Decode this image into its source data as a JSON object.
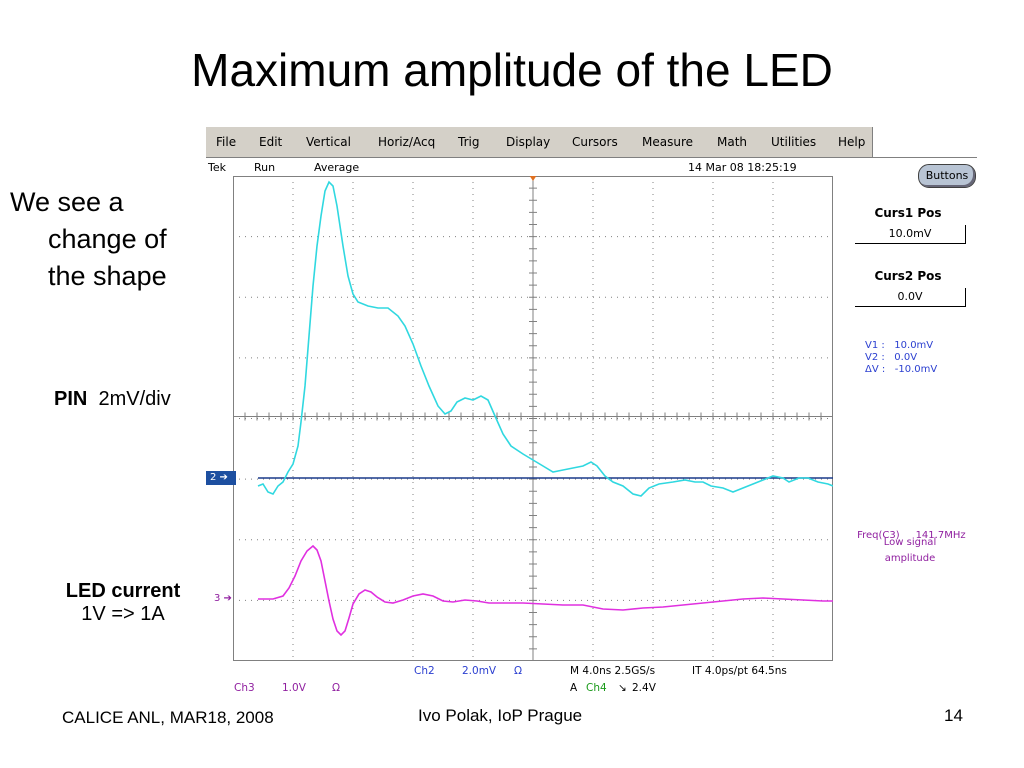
{
  "slide": {
    "title": "Maximum amplitude of the LED",
    "desc_line1": "We see a",
    "desc_line2": "change of",
    "desc_line3": "the shape",
    "pin_bold": "PIN",
    "pin_scale": "2mV/div",
    "led_bold": "LED current",
    "led_scale": "1V => 1A",
    "footer_left": "CALICE ANL, MAR18, 2008",
    "footer_center": "Ivo Polak, IoP Prague",
    "page_number": "14"
  },
  "scope": {
    "menu": [
      "File",
      "Edit",
      "Vertical",
      "Horiz/Acq",
      "Trig",
      "Display",
      "Cursors",
      "Measure",
      "Math",
      "Utilities",
      "Help"
    ],
    "status": {
      "brand": "Tek",
      "state": "Run",
      "mode": "Average",
      "timestamp": "14 Mar 08 18:25:19"
    },
    "buttons_label": "Buttons",
    "curs1_label": "Curs1 Pos",
    "curs1_value": "10.0mV",
    "curs2_label": "Curs2 Pos",
    "curs2_value": "0.0V",
    "readout_v1": "V1 :   10.0mV",
    "readout_v2": "V2 :   0.0V",
    "readout_dv": "ΔV :   -10.0mV",
    "freq_label": "Freq(C3)",
    "freq_value": "141.7MHz",
    "low_signal": "Low signal amplitude",
    "ch2_marker": "2",
    "ch3_marker": "3",
    "bottom": {
      "ch2_name": "Ch2",
      "ch2_scale": "2.0mV",
      "ch2_coupling": "Ω",
      "ch3_name": "Ch3",
      "ch3_scale": "1.0V",
      "ch3_coupling": "Ω",
      "horiz": "M 4.0ns 2.5GS/s",
      "it": "IT 4.0ps/pt 64.5ns",
      "trig_a": "A",
      "trig_src": "Ch4",
      "trig_slope": "↘",
      "trig_level": "2.4V"
    },
    "colors": {
      "ch2": "#30d8e0",
      "ch3": "#e030e0",
      "cursor": "#1a3a8a",
      "grid": "#808080",
      "trigger": "#e07020"
    }
  }
}
